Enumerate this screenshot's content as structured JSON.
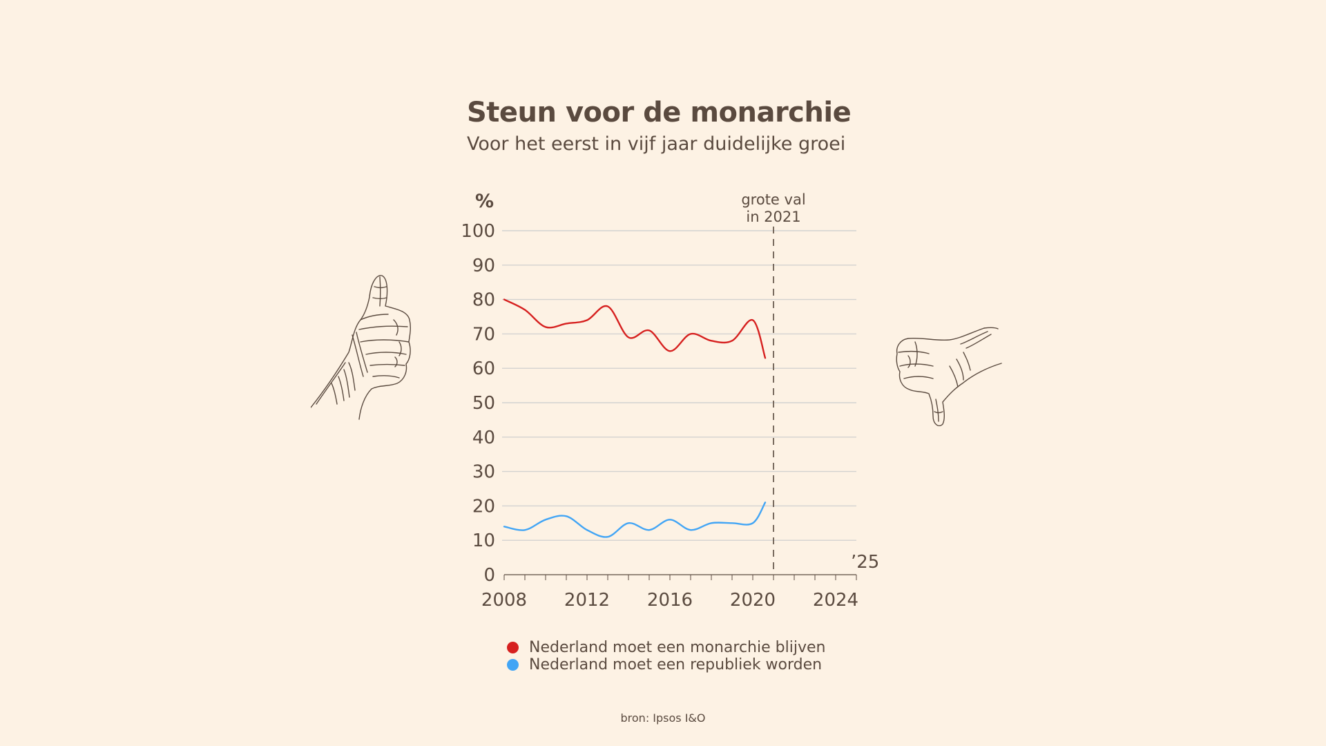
{
  "header": {
    "title": "Steun voor de monarchie",
    "subtitle": "Voor het eerst in vijf jaar duidelijke groei"
  },
  "colors": {
    "background": "#fdf2e4",
    "text": "#5a4a3f",
    "grid": "#d2d1d0",
    "monarchie": "#d6201f",
    "republiek": "#42a5f5"
  },
  "chart_data": {
    "type": "line",
    "title": "Steun voor de monarchie",
    "ylabel": "%",
    "xlabel": "",
    "ylim": [
      0,
      100
    ],
    "xlim": [
      2008,
      2025
    ],
    "y_ticks": [
      "0",
      "10",
      "20",
      "30",
      "40",
      "50",
      "60",
      "70",
      "80",
      "90",
      "100"
    ],
    "x_ticks": [
      "2008",
      "2012",
      "2016",
      "2020",
      "2024"
    ],
    "x_end_label": "’25",
    "grid": true,
    "legend_position": "bottom",
    "annotation": {
      "x": 2021,
      "lines": [
        "grote val",
        "in 2021"
      ]
    },
    "series": [
      {
        "name": "Nederland moet een monarchie blijven",
        "color": "#d6201f",
        "points": [
          [
            2008,
            80
          ],
          [
            2009,
            77
          ],
          [
            2010,
            72
          ],
          [
            2011,
            73
          ],
          [
            2012,
            74
          ],
          [
            2013,
            78
          ],
          [
            2014,
            69
          ],
          [
            2015,
            71
          ],
          [
            2016,
            65
          ],
          [
            2017,
            70
          ],
          [
            2018,
            68
          ],
          [
            2019,
            68
          ],
          [
            2020,
            74
          ],
          [
            2020.6,
            63
          ]
        ]
      },
      {
        "name": "Nederland moet een republiek worden",
        "color": "#42a5f5",
        "points": [
          [
            2008,
            14
          ],
          [
            2009,
            13
          ],
          [
            2010,
            16
          ],
          [
            2011,
            17
          ],
          [
            2012,
            13
          ],
          [
            2013,
            11
          ],
          [
            2014,
            15
          ],
          [
            2015,
            13
          ],
          [
            2016,
            16
          ],
          [
            2017,
            13
          ],
          [
            2018,
            15
          ],
          [
            2019,
            15
          ],
          [
            2020,
            15
          ],
          [
            2020.6,
            21
          ]
        ]
      }
    ]
  },
  "legend": {
    "items": [
      {
        "label": "Nederland moet een monarchie blijven",
        "color": "#d6201f"
      },
      {
        "label": "Nederland moet een republiek worden",
        "color": "#42a5f5"
      }
    ]
  },
  "icons": {
    "left": "thumbs-up-icon",
    "right": "thumbs-down-icon"
  },
  "footer": {
    "source": "bron: Ipsos I&O"
  }
}
